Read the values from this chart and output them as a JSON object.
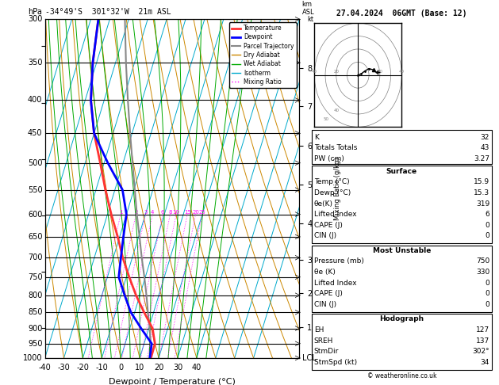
{
  "title_left": "-34°49'S  301°32'W  21m ASL",
  "title_right": "27.04.2024  06GMT (Base: 12)",
  "xlabel": "Dewpoint / Temperature (°C)",
  "ylabel_left": "hPa",
  "temp_color": "#ff3333",
  "dewp_color": "#0000ff",
  "parcel_color": "#888888",
  "dry_adiabat_color": "#cc8800",
  "wet_adiabat_color": "#00aa00",
  "isotherm_color": "#00aacc",
  "mixing_ratio_color": "#ff00ff",
  "background_color": "#ffffff",
  "pressure_levels": [
    300,
    350,
    400,
    450,
    500,
    550,
    600,
    650,
    700,
    750,
    800,
    850,
    900,
    950,
    1000
  ],
  "km_ticks": [
    1,
    2,
    3,
    4,
    5,
    6,
    7,
    8
  ],
  "km_pressures": [
    895,
    795,
    705,
    620,
    540,
    470,
    408,
    357
  ],
  "mixing_ratio_values": [
    1,
    2,
    3,
    4,
    6,
    8,
    10,
    15,
    20,
    25
  ],
  "T_min": -40,
  "T_max": 40,
  "P_min": 300,
  "P_max": 1000,
  "skew_factor": 45.0,
  "temp_profile_T": [
    15.9,
    15.7,
    12.0,
    5.0,
    -2.0,
    -8.5,
    -15.0,
    -21.0,
    -28.0,
    -35.0,
    -42.0,
    -50.0,
    -57.0,
    -62.0,
    -66.0
  ],
  "temp_profile_P": [
    1000,
    950,
    900,
    850,
    800,
    750,
    700,
    650,
    600,
    550,
    500,
    450,
    400,
    350,
    300
  ],
  "dewp_profile_T": [
    15.3,
    14.0,
    6.0,
    -2.0,
    -8.0,
    -14.0,
    -16.0,
    -18.0,
    -20.0,
    -26.0,
    -38.0,
    -50.0,
    -57.0,
    -62.0,
    -66.0
  ],
  "dewp_profile_P": [
    1000,
    950,
    900,
    850,
    800,
    750,
    700,
    650,
    600,
    550,
    500,
    450,
    400,
    350,
    300
  ],
  "parcel_profile_T": [
    15.9,
    13.5,
    10.5,
    7.0,
    3.5,
    -0.5,
    -5.0,
    -9.5,
    -14.5,
    -19.5,
    -25.0,
    -31.0,
    -37.5,
    -44.5,
    -52.0
  ],
  "parcel_profile_P": [
    1000,
    950,
    900,
    850,
    800,
    750,
    700,
    650,
    600,
    550,
    500,
    450,
    400,
    350,
    300
  ],
  "stats": {
    "K": "32",
    "Totals Totals": "43",
    "PW (cm)": "3.27",
    "Surface": {
      "Temp (°C)": "15.9",
      "Dewp (°C)": "15.3",
      "θe(K)": "319",
      "Lifted Index": "6",
      "CAPE (J)": "0",
      "CIN (J)": "0"
    },
    "Most Unstable": {
      "Pressure (mb)": "750",
      "θe (K)": "330",
      "Lifted Index": "0",
      "CAPE (J)": "0",
      "CIN (J)": "0"
    },
    "Hodograph": {
      "EH": "127",
      "SREH": "137",
      "StmDir": "302°",
      "StmSpd (kt)": "34"
    }
  }
}
